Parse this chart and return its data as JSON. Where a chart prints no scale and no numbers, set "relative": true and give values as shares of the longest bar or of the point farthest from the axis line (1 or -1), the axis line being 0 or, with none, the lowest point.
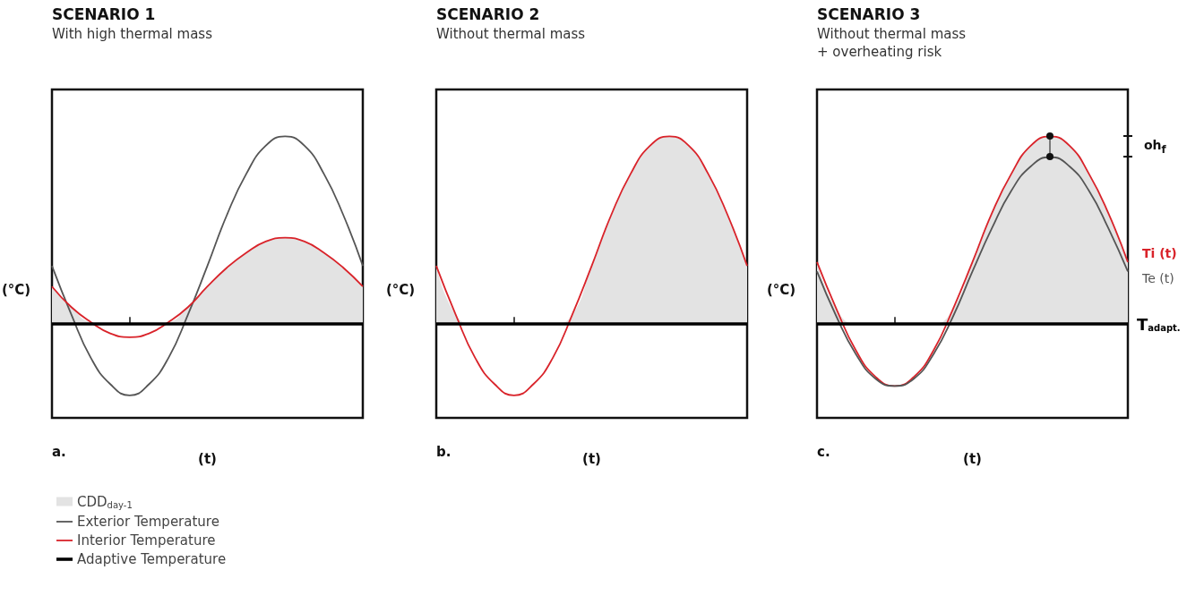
{
  "chart_data": [
    {
      "type": "line",
      "title": "SCENARIO 1",
      "subtitle": "With high thermal mass",
      "xlabel": "(t)",
      "ylabel": "(°C)",
      "relative": true,
      "legend": "bottom left",
      "annotations": [
        "a."
      ],
      "categories": [
        null,
        null,
        null,
        null,
        null,
        null,
        null,
        null,
        null,
        null,
        null,
        null,
        null,
        null,
        null,
        null,
        null
      ],
      "series": [
        {
          "type": "area",
          "name": "CDD$_{day-1}$",
          "color": "#e3e3e3",
          "values": [
            0.2,
            0.09,
            0.01,
            0,
            0,
            0,
            0.01,
            0.09,
            0.2,
            0.3,
            0.38,
            0.44,
            0.46,
            0.44,
            0.38,
            0.3,
            0.2
          ]
        },
        {
          "type": "line",
          "name": "Exterior Temperature",
          "color": "#555555",
          "values": [
            0.31,
            0.05,
            -0.18,
            -0.32,
            -0.38,
            -0.32,
            -0.18,
            0.05,
            0.31,
            0.58,
            0.8,
            0.95,
            1.0,
            0.95,
            0.8,
            0.58,
            0.31
          ]
        },
        {
          "type": "line",
          "name": "Interior Temperature",
          "color": "#d9232a",
          "values": [
            0.2,
            0.09,
            0.01,
            -0.05,
            -0.07,
            -0.05,
            0.01,
            0.09,
            0.2,
            0.3,
            0.38,
            0.44,
            0.46,
            0.44,
            0.38,
            0.3,
            0.2
          ]
        }
      ],
      "ref_lines": [
        {
          "axis": "y",
          "value": 0,
          "label": "Adaptive Temperature",
          "color": "#000000"
        }
      ]
    },
    {
      "type": "line",
      "title": "SCENARIO 2",
      "subtitle": "Without thermal mass",
      "xlabel": "(t)",
      "ylabel": "(°C)",
      "relative": true,
      "annotations": [
        "b."
      ],
      "categories": [
        null,
        null,
        null,
        null,
        null,
        null,
        null,
        null,
        null,
        null,
        null,
        null,
        null,
        null,
        null,
        null,
        null
      ],
      "series": [
        {
          "type": "area",
          "color": "#e3e3e3",
          "values": [
            0.31,
            0.05,
            0,
            0,
            0,
            0,
            0,
            0.05,
            0.31,
            0.58,
            0.8,
            0.95,
            1.0,
            0.95,
            0.8,
            0.58,
            0.31
          ]
        },
        {
          "type": "line",
          "color": "#d9232a",
          "values": [
            0.31,
            0.05,
            -0.18,
            -0.32,
            -0.38,
            -0.32,
            -0.18,
            0.05,
            0.31,
            0.58,
            0.8,
            0.95,
            1.0,
            0.95,
            0.8,
            0.58,
            0.31
          ]
        }
      ],
      "ref_lines": [
        {
          "axis": "y",
          "value": 0,
          "color": "#000000"
        }
      ]
    },
    {
      "type": "line",
      "title": "SCENARIO 3",
      "subtitle": "Without thermal mass\n+ overheating risk",
      "xlabel": "(t)",
      "ylabel": "(°C)",
      "relative": true,
      "annotations": [
        "c.",
        "oh$_{f}$"
      ],
      "categories": [
        null,
        null,
        null,
        null,
        null,
        null,
        null,
        null,
        null,
        null,
        null,
        null,
        null,
        null,
        null,
        null,
        null
      ],
      "series": [
        {
          "type": "area",
          "color": "#e3e3e3",
          "values": [
            0.33,
            0.08,
            0,
            0,
            0,
            0,
            0,
            0.08,
            0.33,
            0.59,
            0.8,
            0.95,
            1.0,
            0.95,
            0.8,
            0.59,
            0.33
          ]
        },
        {
          "type": "line",
          "name": "Ti (t)",
          "color": "#d9232a",
          "values": [
            0.33,
            0.08,
            -0.14,
            -0.28,
            -0.33,
            -0.28,
            -0.14,
            0.08,
            0.33,
            0.59,
            0.8,
            0.95,
            1.0,
            0.95,
            0.8,
            0.59,
            0.33
          ]
        },
        {
          "type": "line",
          "name": "Te (t)",
          "color": "#555555",
          "values": [
            0.28,
            0.04,
            -0.16,
            -0.29,
            -0.33,
            -0.29,
            -0.16,
            0.04,
            0.28,
            0.51,
            0.71,
            0.84,
            0.89,
            0.84,
            0.71,
            0.51,
            0.28
          ]
        }
      ],
      "ref_lines": [
        {
          "axis": "y",
          "value": 0,
          "label": "T$_{adapt.}$",
          "color": "#000000"
        }
      ]
    }
  ]
}
